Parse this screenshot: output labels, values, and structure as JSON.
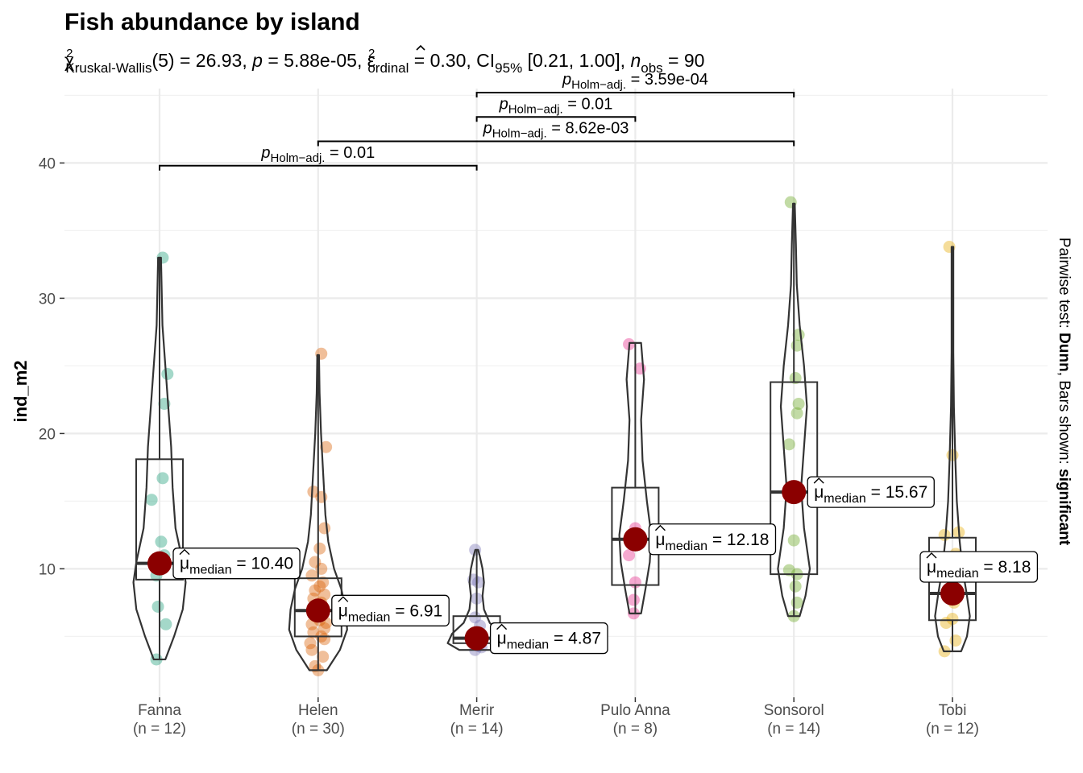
{
  "chart_data": {
    "type": "violin-box",
    "title": "Fish abundance by island",
    "subtitle": {
      "stat_symbol": "χ",
      "stat_sup": "2",
      "stat_sub": "Kruskal-Wallis",
      "df": "(5) = 26.93, ",
      "p_symbol": "p",
      "p_value": " = 5.88e-05, ",
      "effect_symbol": "ε",
      "effect_sup": "2",
      "effect_sub": "ordinal",
      "effect_value": " = 0.30, CI",
      "ci_sub": "95%",
      "ci_value": " [0.21, 1.00], ",
      "n_symbol": "n",
      "n_sub": "obs",
      "n_value": " = 90"
    },
    "ylabel": "ind_m2",
    "xlabel": "",
    "ylim": [
      0.5,
      45.5
    ],
    "yticks": [
      10,
      20,
      30,
      40
    ],
    "grid": true,
    "caption": {
      "prefix": "Pairwise test: ",
      "test": "Dunn",
      "middle": ", Bars shown: ",
      "shown": "significant"
    },
    "groups": [
      {
        "name": "Fanna",
        "n_label": "(n = 12)",
        "color": "#1B9E77",
        "box": {
          "q1": 9.2,
          "median": 10.4,
          "q3": 18.1,
          "whisker_low": 3.3,
          "whisker_high": 33.0
        },
        "violin": [
          [
            3.3,
            0.2
          ],
          [
            5,
            0.5
          ],
          [
            7,
            0.8
          ],
          [
            9,
            0.9
          ],
          [
            10.5,
            0.8
          ],
          [
            13,
            0.55
          ],
          [
            16,
            0.45
          ],
          [
            19,
            0.4
          ],
          [
            22,
            0.3
          ],
          [
            25,
            0.2
          ],
          [
            28,
            0.1
          ],
          [
            33,
            0.05
          ]
        ],
        "points": [
          [
            3.3,
            -0.02
          ],
          [
            5.9,
            0.04
          ],
          [
            7.2,
            -0.01
          ],
          [
            15.1,
            -0.05
          ],
          [
            16.7,
            0.02
          ],
          [
            22.2,
            0.03
          ],
          [
            24.4,
            0.05
          ],
          [
            33.0,
            0.02
          ],
          [
            10.0,
            0.0
          ],
          [
            11.0,
            0.03
          ],
          [
            9.5,
            -0.02
          ],
          [
            12.0,
            0.01
          ]
        ],
        "median_label": "10.40"
      },
      {
        "name": "Helen",
        "n_label": "(n = 30)",
        "color": "#D95F02",
        "box": {
          "q1": 5.0,
          "median": 6.91,
          "q3": 9.3,
          "whisker_low": 2.5,
          "whisker_high": 25.8
        },
        "violin": [
          [
            2.5,
            0.3
          ],
          [
            4,
            0.75
          ],
          [
            5.5,
            1.0
          ],
          [
            7,
            0.95
          ],
          [
            8.5,
            0.8
          ],
          [
            10,
            0.55
          ],
          [
            12,
            0.35
          ],
          [
            14,
            0.25
          ],
          [
            16,
            0.2
          ],
          [
            18,
            0.15
          ],
          [
            20,
            0.1
          ],
          [
            23,
            0.05
          ],
          [
            25.8,
            0.03
          ]
        ],
        "points": [
          [
            2.5,
            0.0
          ],
          [
            2.8,
            -0.02
          ],
          [
            3.5,
            0.03
          ],
          [
            4.0,
            -0.04
          ],
          [
            4.5,
            -0.05
          ],
          [
            5.0,
            0.02
          ],
          [
            5.3,
            -0.03
          ],
          [
            5.6,
            0.04
          ],
          [
            5.9,
            -0.04
          ],
          [
            6.2,
            0.01
          ],
          [
            6.5,
            -0.02
          ],
          [
            6.9,
            0.03
          ],
          [
            7.2,
            -0.01
          ],
          [
            7.5,
            0.02
          ],
          [
            7.8,
            -0.03
          ],
          [
            8.1,
            0.04
          ],
          [
            8.4,
            -0.02
          ],
          [
            8.7,
            0.01
          ],
          [
            9.0,
            0.03
          ],
          [
            9.5,
            -0.04
          ],
          [
            10.0,
            0.02
          ],
          [
            10.5,
            -0.02
          ],
          [
            11.5,
            0.01
          ],
          [
            13.0,
            0.04
          ],
          [
            15.3,
            0.02
          ],
          [
            15.7,
            -0.03
          ],
          [
            19.0,
            0.05
          ],
          [
            25.9,
            0.02
          ],
          [
            6.0,
            0.05
          ],
          [
            4.8,
            0.04
          ]
        ],
        "median_label": "6.91"
      },
      {
        "name": "Merir",
        "n_label": "(n = 14)",
        "color": "#7570B3",
        "box": {
          "q1": 4.5,
          "median": 4.87,
          "q3": 6.5,
          "whisker_low": 4.0,
          "whisker_high": 11.4
        },
        "violin": [
          [
            4.0,
            0.6
          ],
          [
            4.5,
            1.0
          ],
          [
            5.2,
            0.85
          ],
          [
            6.0,
            0.45
          ],
          [
            7.0,
            0.25
          ],
          [
            8.0,
            0.2
          ],
          [
            9.0,
            0.25
          ],
          [
            10.0,
            0.2
          ],
          [
            11.0,
            0.1
          ],
          [
            11.4,
            0.05
          ]
        ],
        "points": [
          [
            4.0,
            -0.01
          ],
          [
            4.3,
            0.01
          ],
          [
            4.5,
            -0.02
          ],
          [
            4.7,
            0.02
          ],
          [
            4.9,
            0.0
          ],
          [
            5.1,
            -0.01
          ],
          [
            5.3,
            0.01
          ],
          [
            5.8,
            0.02
          ],
          [
            6.4,
            -0.01
          ],
          [
            7.8,
            0.0
          ],
          [
            9.0,
            0.01
          ],
          [
            9.2,
            -0.02
          ],
          [
            11.4,
            -0.01
          ],
          [
            4.2,
            0.03
          ]
        ],
        "median_label": "4.87"
      },
      {
        "name": "Pulo Anna",
        "n_label": "(n = 8)",
        "color": "#E7298A",
        "box": {
          "q1": 8.8,
          "median": 12.18,
          "q3": 16.0,
          "whisker_low": 6.7,
          "whisker_high": 26.7
        },
        "violin": [
          [
            6.7,
            0.2
          ],
          [
            8.5,
            0.35
          ],
          [
            10.5,
            0.5
          ],
          [
            12.5,
            0.55
          ],
          [
            15,
            0.4
          ],
          [
            18,
            0.25
          ],
          [
            21,
            0.2
          ],
          [
            24,
            0.3
          ],
          [
            26.7,
            0.2
          ]
        ],
        "points": [
          [
            6.7,
            -0.01
          ],
          [
            7.7,
            -0.01
          ],
          [
            9.0,
            0.0
          ],
          [
            11.0,
            -0.04
          ],
          [
            13.0,
            0.0
          ],
          [
            24.8,
            0.03
          ],
          [
            26.6,
            -0.04
          ],
          [
            12.0,
            0.01
          ]
        ],
        "median_label": "12.18"
      },
      {
        "name": "Sonsorol",
        "n_label": "(n = 14)",
        "color": "#66A61E",
        "box": {
          "q1": 9.6,
          "median": 15.67,
          "q3": 23.8,
          "whisker_low": 6.5,
          "whisker_high": 37.0
        },
        "violin": [
          [
            6.5,
            0.2
          ],
          [
            8,
            0.4
          ],
          [
            10,
            0.55
          ],
          [
            13,
            0.35
          ],
          [
            16,
            0.25
          ],
          [
            19,
            0.35
          ],
          [
            22,
            0.45
          ],
          [
            25,
            0.35
          ],
          [
            28,
            0.2
          ],
          [
            31,
            0.1
          ],
          [
            34,
            0.07
          ],
          [
            37,
            0.03
          ]
        ],
        "points": [
          [
            6.5,
            0.0
          ],
          [
            7.5,
            0.02
          ],
          [
            9.6,
            0.02
          ],
          [
            9.9,
            -0.03
          ],
          [
            12.1,
            0.0
          ],
          [
            19.2,
            -0.03
          ],
          [
            21.5,
            0.02
          ],
          [
            22.2,
            0.03
          ],
          [
            24.1,
            0.01
          ],
          [
            26.5,
            0.02
          ],
          [
            27.3,
            0.03
          ],
          [
            37.1,
            -0.02
          ],
          [
            15.5,
            0.01
          ],
          [
            8.7,
            0.01
          ]
        ],
        "median_label": "15.67"
      },
      {
        "name": "Tobi",
        "n_label": "(n = 12)",
        "color": "#E6AB02",
        "box": {
          "q1": 6.2,
          "median": 8.18,
          "q3": 12.3,
          "whisker_low": 3.9,
          "whisker_high": 33.8
        },
        "violin": [
          [
            3.9,
            0.3
          ],
          [
            5,
            0.5
          ],
          [
            6.5,
            0.6
          ],
          [
            8,
            0.5
          ],
          [
            10,
            0.35
          ],
          [
            12,
            0.25
          ],
          [
            15,
            0.15
          ],
          [
            18,
            0.1
          ],
          [
            22,
            0.05
          ],
          [
            26,
            0.03
          ],
          [
            30,
            0.03
          ],
          [
            33.8,
            0.03
          ]
        ],
        "points": [
          [
            3.9,
            -0.05
          ],
          [
            4.7,
            0.02
          ],
          [
            6.0,
            -0.04
          ],
          [
            6.3,
            0.0
          ],
          [
            8.3,
            0.02
          ],
          [
            9.7,
            -0.03
          ],
          [
            11.1,
            0.02
          ],
          [
            12.5,
            -0.05
          ],
          [
            12.7,
            0.04
          ],
          [
            18.4,
            0.0
          ],
          [
            33.8,
            -0.02
          ],
          [
            7.5,
            0.01
          ]
        ],
        "median_label": "8.18"
      }
    ],
    "median_prefix": "μ",
    "median_sub": "median",
    "median_eq": " = ",
    "pairwise": [
      {
        "from": 0,
        "to": 2,
        "y": 39.8,
        "p_symbol": "p",
        "p_sub": "Holm−adj.",
        "value": " = 0.01"
      },
      {
        "from": 1,
        "to": 4,
        "y": 41.6,
        "p_symbol": "p",
        "p_sub": "Holm−adj.",
        "value": " = 8.62e-03"
      },
      {
        "from": 2,
        "to": 3,
        "y": 43.4,
        "p_symbol": "p",
        "p_sub": "Holm−adj.",
        "value": " = 0.01"
      },
      {
        "from": 2,
        "to": 4,
        "y": 45.2,
        "p_symbol": "p",
        "p_sub": "Holm−adj.",
        "value": " = 3.59e-04"
      }
    ],
    "colors": {
      "median_dot": "#8B0000",
      "box_stroke": "#333333",
      "grid_major": "#EBEBEB",
      "grid_minor": "#F2F2F2"
    }
  }
}
